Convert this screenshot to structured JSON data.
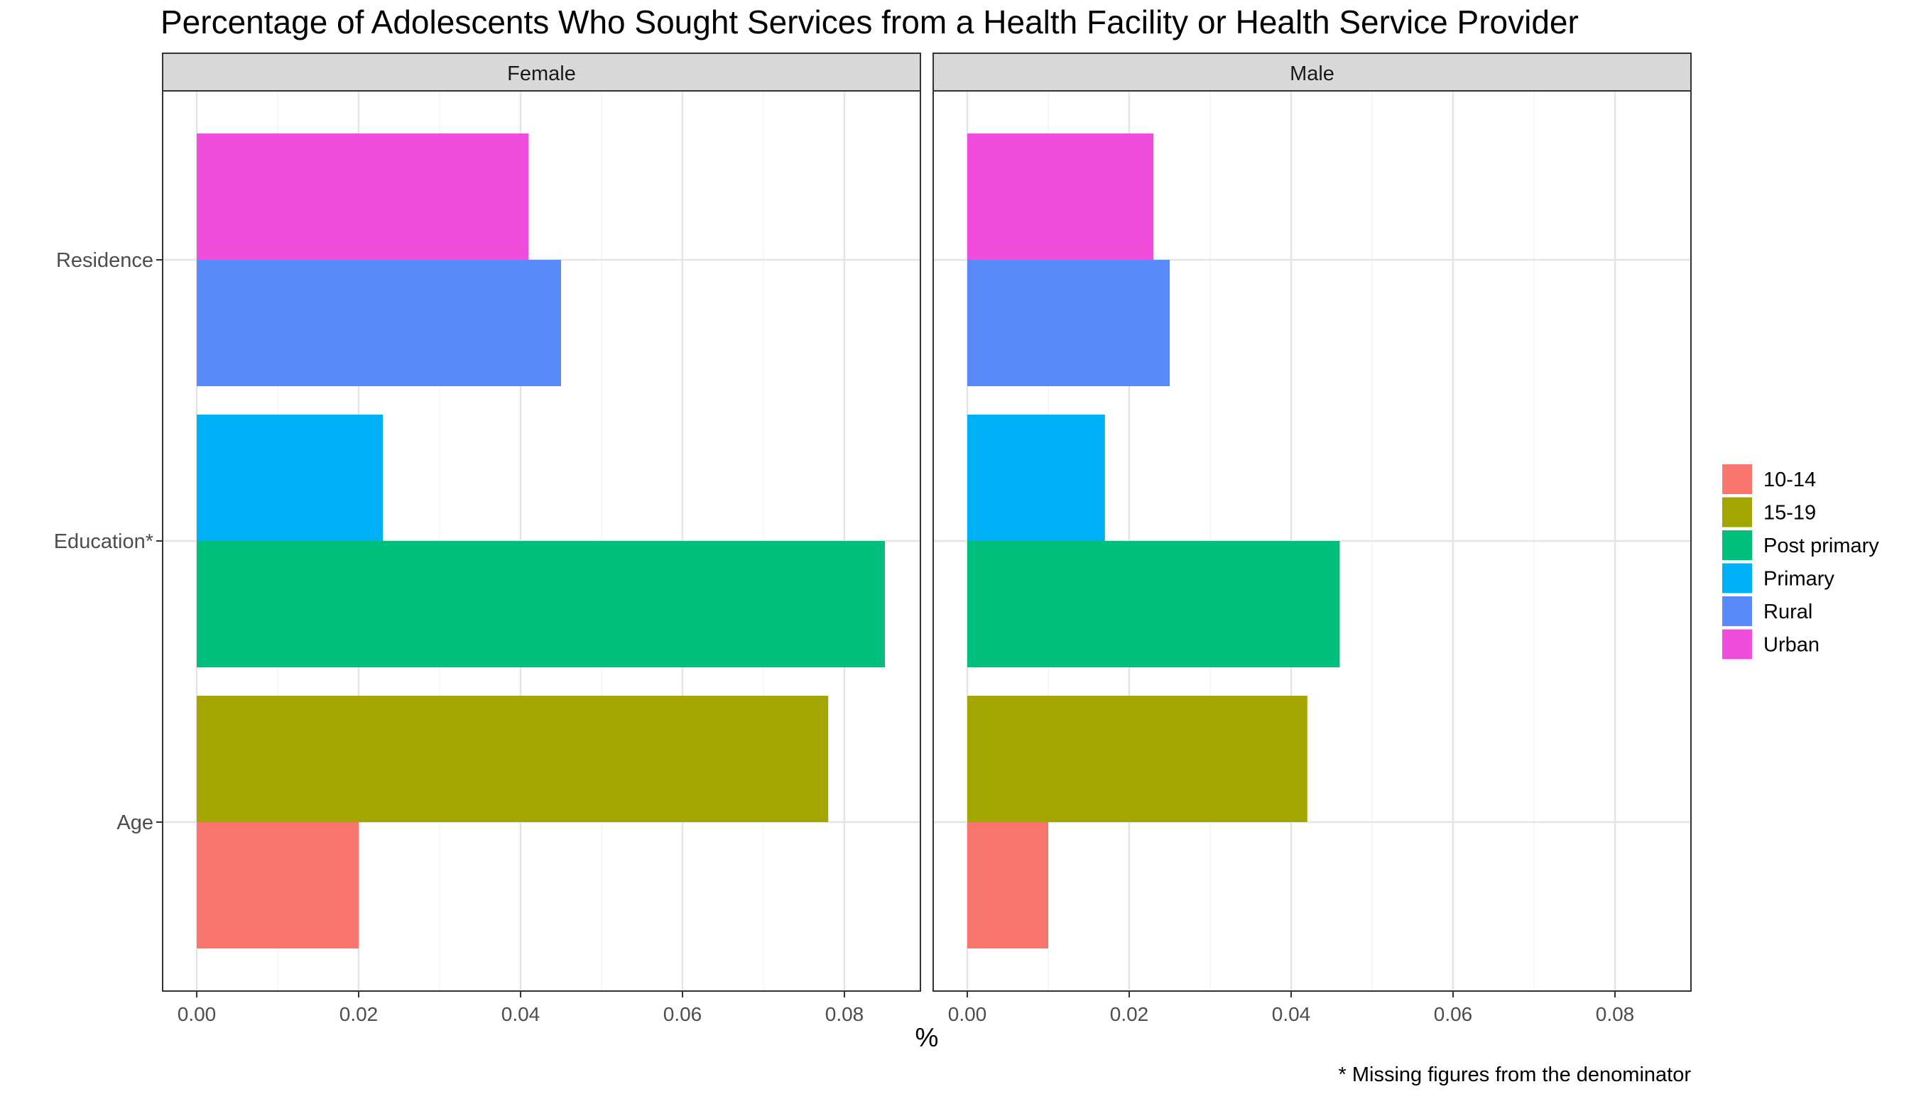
{
  "chart_data": {
    "type": "bar",
    "orientation": "horizontal",
    "title": "Percentage of Adolescents Who Sought Services from a Health Facility or Health Service Provider",
    "xlabel": "%",
    "ylabel": "",
    "caption": "* Missing figures from the denominator",
    "xlim": [
      0,
      0.088
    ],
    "xticks": [
      "0.00",
      "0.02",
      "0.04",
      "0.06",
      "0.08"
    ],
    "xtick_values": [
      0,
      0.02,
      0.04,
      0.06,
      0.08
    ],
    "grid": true,
    "legend_position": "right",
    "categories": [
      "Residence",
      "Education*",
      "Age"
    ],
    "legend": [
      {
        "name": "10-14",
        "color": "#F8766D"
      },
      {
        "name": "15-19",
        "color": "#A3A500"
      },
      {
        "name": "Post primary",
        "color": "#00BF7D"
      },
      {
        "name": "Primary",
        "color": "#00B0F6"
      },
      {
        "name": "Rural",
        "color": "#5A8AF7"
      },
      {
        "name": "Urban",
        "color": "#F04DDC"
      }
    ],
    "facets": [
      {
        "name": "Female",
        "bars": [
          {
            "category": "Residence",
            "group": "Urban",
            "value": 0.041
          },
          {
            "category": "Residence",
            "group": "Rural",
            "value": 0.045
          },
          {
            "category": "Education*",
            "group": "Primary",
            "value": 0.023
          },
          {
            "category": "Education*",
            "group": "Post primary",
            "value": 0.085
          },
          {
            "category": "Age",
            "group": "15-19",
            "value": 0.078
          },
          {
            "category": "Age",
            "group": "10-14",
            "value": 0.02
          }
        ]
      },
      {
        "name": "Male",
        "bars": [
          {
            "category": "Residence",
            "group": "Urban",
            "value": 0.023
          },
          {
            "category": "Residence",
            "group": "Rural",
            "value": 0.025
          },
          {
            "category": "Education*",
            "group": "Primary",
            "value": 0.017
          },
          {
            "category": "Education*",
            "group": "Post primary",
            "value": 0.046
          },
          {
            "category": "Age",
            "group": "15-19",
            "value": 0.042
          },
          {
            "category": "Age",
            "group": "10-14",
            "value": 0.01
          }
        ]
      }
    ]
  }
}
